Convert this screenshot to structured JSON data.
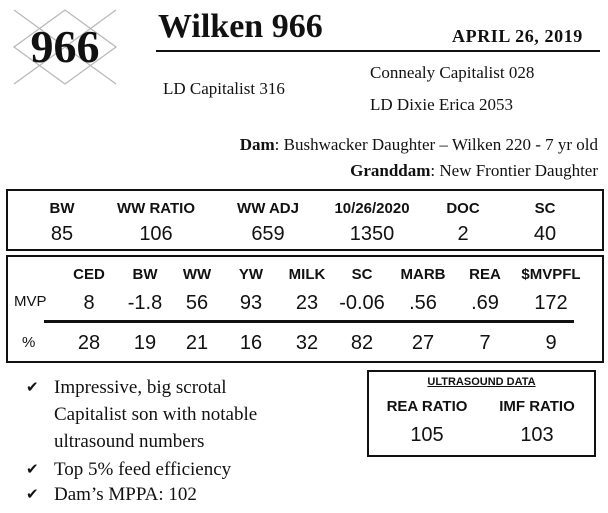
{
  "header": {
    "lot_number": "966",
    "name": "Wilken 966",
    "date": "APRIL  26, 2019"
  },
  "pedigree": {
    "sire": "LD Capitalist 316",
    "sire_dam_sire": "Connealy Capitalist 028",
    "sire_dam": "LD Dixie Erica 2053",
    "dam_label": "Dam",
    "dam_value": ": Bushwacker Daughter – Wilken 220 - 7 yr old",
    "granddam_label": "Granddam",
    "granddam_value": ": New Frontier Daughter"
  },
  "performance": {
    "headers": [
      "BW",
      "WW RATIO",
      "WW ADJ",
      "10/26/2020",
      "DOC",
      "SC"
    ],
    "values": [
      "85",
      "106",
      "659",
      "1350",
      "2",
      "40"
    ]
  },
  "epds": {
    "headers": [
      "CED",
      "BW",
      "WW",
      "YW",
      "MILK",
      "SC",
      "MARB",
      "REA",
      "$MVPFL"
    ],
    "mvp_label": "MVP",
    "mvp": [
      "8",
      "-1.8",
      "56",
      "93",
      "23",
      "-0.06",
      ".56",
      ".69",
      "172"
    ],
    "pct_label": "%",
    "pct": [
      "28",
      "19",
      "21",
      "16",
      "32",
      "82",
      "27",
      "7",
      "9"
    ]
  },
  "ultrasound": {
    "title": "ULTRASOUND DATA",
    "headers": [
      "REA RATIO",
      "IMF RATIO"
    ],
    "values": [
      "105",
      "103"
    ]
  },
  "notes": {
    "check_icon": "check-icon",
    "bullet1_line1": "Impressive, big scrotal",
    "bullet1_line2": "Capitalist son with notable",
    "bullet1_line3": "ultrasound numbers",
    "bullet2": "Top 5% feed efficiency",
    "bullet3": "Dam’s MPPA: 102"
  }
}
